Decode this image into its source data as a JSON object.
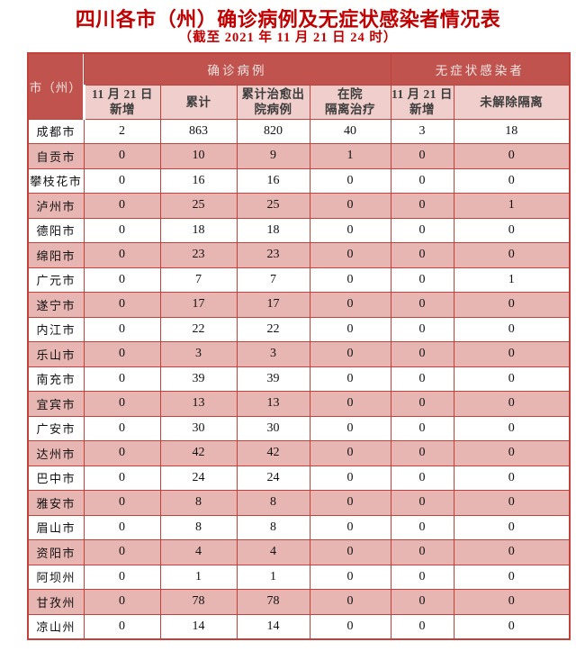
{
  "page": {
    "title": "四川各市（州）确诊病例及无症状感染者情况表",
    "subtitle": "（截至 2021 年 11 月 21 日 24 时）"
  },
  "chart_data": {
    "type": "table",
    "title": "四川各市（州）确诊病例及无症状感染者情况表",
    "subtitle": "（截至 2021 年 11 月 21 日 24 时）",
    "corner_header": "市（州）",
    "column_groups": [
      {
        "label": "确诊病例",
        "span": 4
      },
      {
        "label": "无症状感染者",
        "span": 2
      }
    ],
    "columns": [
      "11 月 21 日\n新增",
      "累计",
      "累计治愈出\n院病例",
      "在院\n隔离治疗",
      "11 月 21 日\n新增",
      "未解除隔离"
    ],
    "rows": [
      {
        "city": "成都市",
        "values": [
          "2",
          "863",
          "820",
          "40",
          "3",
          "18"
        ]
      },
      {
        "city": "自贡市",
        "values": [
          "0",
          "10",
          "9",
          "1",
          "0",
          "0"
        ]
      },
      {
        "city": "攀枝花市",
        "values": [
          "0",
          "16",
          "16",
          "0",
          "0",
          "0"
        ]
      },
      {
        "city": "泸州市",
        "values": [
          "0",
          "25",
          "25",
          "0",
          "0",
          "1"
        ]
      },
      {
        "city": "德阳市",
        "values": [
          "0",
          "18",
          "18",
          "0",
          "0",
          "0"
        ]
      },
      {
        "city": "绵阳市",
        "values": [
          "0",
          "23",
          "23",
          "0",
          "0",
          "0"
        ]
      },
      {
        "city": "广元市",
        "values": [
          "0",
          "7",
          "7",
          "0",
          "0",
          "1"
        ]
      },
      {
        "city": "遂宁市",
        "values": [
          "0",
          "17",
          "17",
          "0",
          "0",
          "0"
        ]
      },
      {
        "city": "内江市",
        "values": [
          "0",
          "22",
          "22",
          "0",
          "0",
          "0"
        ]
      },
      {
        "city": "乐山市",
        "values": [
          "0",
          "3",
          "3",
          "0",
          "0",
          "0"
        ]
      },
      {
        "city": "南充市",
        "values": [
          "0",
          "39",
          "39",
          "0",
          "0",
          "0"
        ]
      },
      {
        "city": "宜宾市",
        "values": [
          "0",
          "13",
          "13",
          "0",
          "0",
          "0"
        ]
      },
      {
        "city": "广安市",
        "values": [
          "0",
          "30",
          "30",
          "0",
          "0",
          "0"
        ]
      },
      {
        "city": "达州市",
        "values": [
          "0",
          "42",
          "42",
          "0",
          "0",
          "0"
        ]
      },
      {
        "city": "巴中市",
        "values": [
          "0",
          "24",
          "24",
          "0",
          "0",
          "0"
        ]
      },
      {
        "city": "雅安市",
        "values": [
          "0",
          "8",
          "8",
          "0",
          "0",
          "0"
        ]
      },
      {
        "city": "眉山市",
        "values": [
          "0",
          "8",
          "8",
          "0",
          "0",
          "0"
        ]
      },
      {
        "city": "资阳市",
        "values": [
          "0",
          "4",
          "4",
          "0",
          "0",
          "0"
        ]
      },
      {
        "city": "阿坝州",
        "values": [
          "0",
          "1",
          "1",
          "0",
          "0",
          "0"
        ]
      },
      {
        "city": "甘孜州",
        "values": [
          "0",
          "78",
          "78",
          "0",
          "0",
          "0"
        ]
      },
      {
        "city": "凉山州",
        "values": [
          "0",
          "14",
          "14",
          "0",
          "0",
          "0"
        ]
      }
    ]
  },
  "colors": {
    "title_red": "#c00000",
    "header_bg": "#c0534e",
    "header_text": "#f3e4e2",
    "subheader_bg": "#efcecb",
    "subheader_text": "#3d3d3d",
    "band_pink": "#e7b6b3",
    "border_red": "#c2423b",
    "cell_text": "#111111"
  }
}
